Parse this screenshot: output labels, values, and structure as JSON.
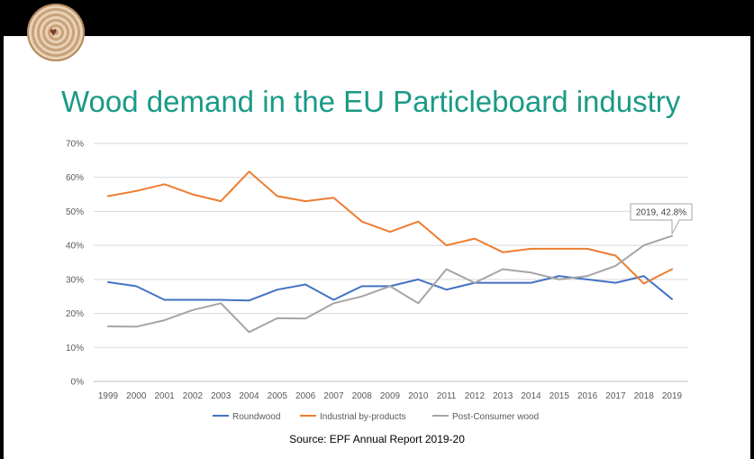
{
  "slide": {
    "title": "Wood demand in the EU Particleboard industry",
    "source": "Source: EPF Annual Report 2019-20"
  },
  "chart_data": {
    "type": "line",
    "title": "",
    "categories": [
      "1999",
      "2000",
      "2001",
      "2002",
      "2003",
      "2004",
      "2005",
      "2006",
      "2007",
      "2008",
      "2009",
      "2010",
      "2011",
      "2012",
      "2013",
      "2014",
      "2015",
      "2016",
      "2017",
      "2018",
      "2019"
    ],
    "ylim": [
      0,
      70
    ],
    "yticks": [
      "0%",
      "10%",
      "20%",
      "30%",
      "40%",
      "50%",
      "60%",
      "70%"
    ],
    "grid": true,
    "legend_position": "bottom",
    "series": [
      {
        "name": "Roundwood",
        "color": "#4472c4",
        "values": [
          29.2,
          28,
          24,
          24,
          24,
          23.8,
          27,
          28.5,
          24,
          28,
          28,
          30,
          27,
          29,
          29,
          29,
          31,
          30,
          29,
          31,
          24.2
        ]
      },
      {
        "name": "Industrial by-products",
        "color": "#ed7d31",
        "values": [
          54.5,
          56,
          58,
          55,
          53,
          61.7,
          54.5,
          53,
          54,
          47,
          44,
          47,
          40,
          42,
          38,
          39,
          39,
          39,
          37,
          28.8,
          33
        ]
      },
      {
        "name": "Post-Consumer wood",
        "color": "#a5a5a5",
        "values": [
          16.2,
          16.1,
          18,
          21,
          23,
          14.5,
          18.6,
          18.5,
          23,
          25,
          28,
          23,
          33,
          29,
          33,
          32,
          30,
          31,
          34,
          40,
          42.8
        ]
      }
    ],
    "annotation": {
      "text": "2019, 42.8%",
      "series": "Post-Consumer wood",
      "category": "2019"
    }
  }
}
